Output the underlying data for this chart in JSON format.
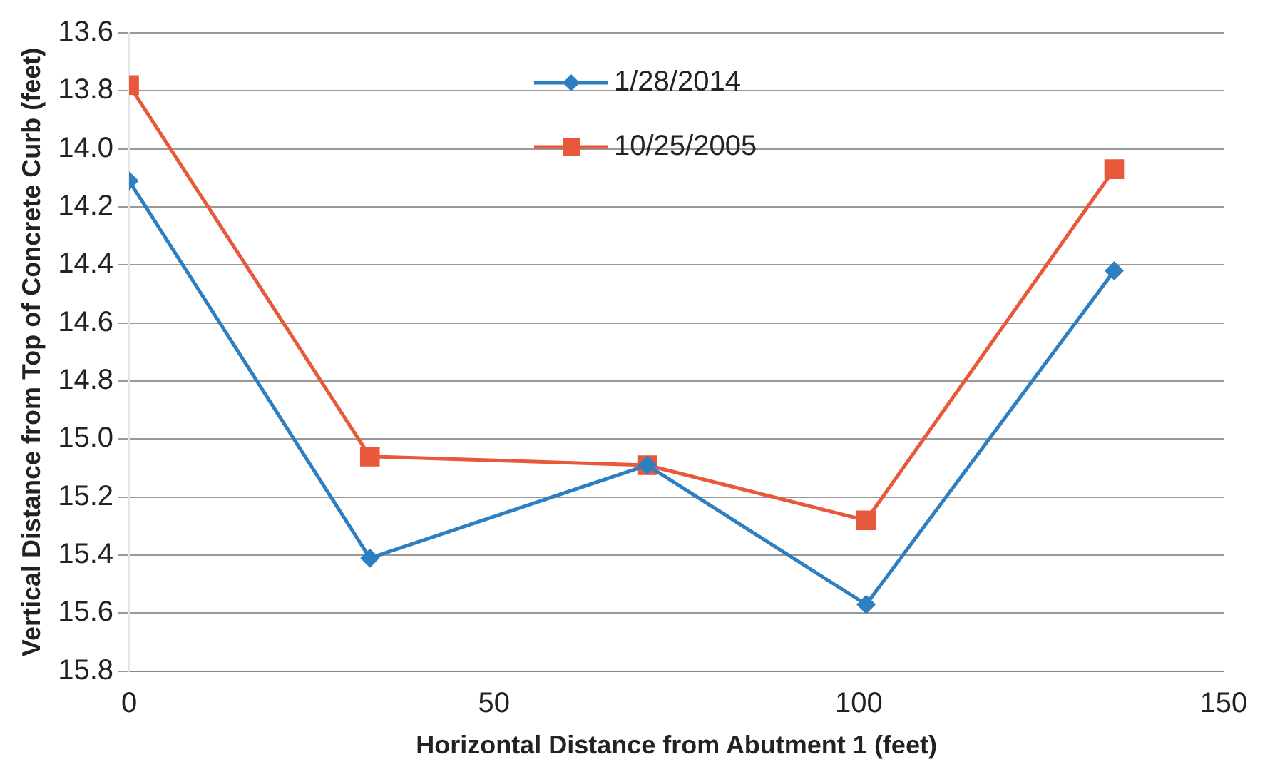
{
  "chart_data": {
    "type": "line",
    "xlabel": "Horizontal Distance from Abutment 1 (feet)",
    "ylabel": "Vertical Distance from Top of Concrete Curb (feet)",
    "xlim": [
      0,
      150
    ],
    "xticks": [
      0,
      50,
      100,
      150
    ],
    "ylim": [
      15.8,
      13.6
    ],
    "yticks": [
      13.6,
      13.8,
      {
        "value": 14,
        "label": "14.0"
      },
      14.2,
      14.4,
      14.6,
      14.8,
      {
        "value": 15,
        "label": "15.0"
      },
      15.2,
      15.4,
      15.6,
      15.8
    ],
    "grid": "y",
    "legend": "top",
    "line_style": "solid",
    "series": [
      {
        "name": "1/28/2014",
        "color": "#2e7fc1",
        "marker": "diamond",
        "x": [
          0,
          33,
          71,
          101,
          135
        ],
        "values": [
          14.11,
          15.41,
          15.09,
          15.57,
          14.42
        ]
      },
      {
        "name": "10/25/2005",
        "color": "#e8593b",
        "marker": "square",
        "x": [
          0,
          33,
          71,
          101,
          135
        ],
        "values": [
          13.78,
          15.06,
          15.09,
          15.28,
          14.07
        ]
      }
    ]
  }
}
